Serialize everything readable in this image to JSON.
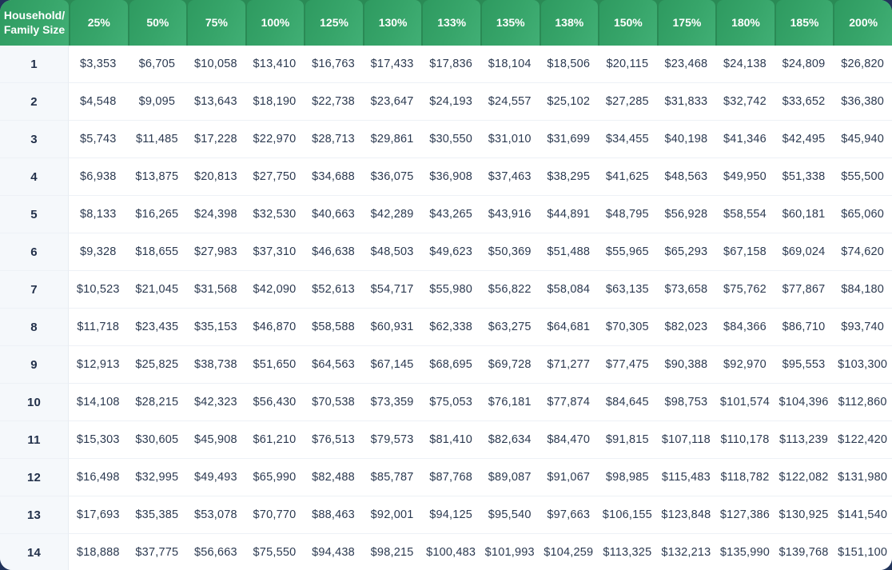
{
  "colors": {
    "header_green_dark": "#2e9a60",
    "header_green_light": "#41af75",
    "header_gap_green": "#2a8a55",
    "underlay_green": "#3fae74",
    "page_navy": "#22345b",
    "row_alt_tint": "#f5f8fb",
    "separator": "#edf1f6",
    "text_dark": "#2b3950"
  },
  "chart_data": {
    "type": "table",
    "corner_header": "Household/\nFamily Size",
    "column_headers": [
      "25%",
      "50%",
      "75%",
      "100%",
      "125%",
      "130%",
      "133%",
      "135%",
      "138%",
      "150%",
      "175%",
      "180%",
      "185%",
      "200%"
    ],
    "rows": [
      {
        "household_size": "1",
        "values": [
          "$3,353",
          "$6,705",
          "$10,058",
          "$13,410",
          "$16,763",
          "$17,433",
          "$17,836",
          "$18,104",
          "$18,506",
          "$20,115",
          "$23,468",
          "$24,138",
          "$24,809",
          "$26,820"
        ]
      },
      {
        "household_size": "2",
        "values": [
          "$4,548",
          "$9,095",
          "$13,643",
          "$18,190",
          "$22,738",
          "$23,647",
          "$24,193",
          "$24,557",
          "$25,102",
          "$27,285",
          "$31,833",
          "$32,742",
          "$33,652",
          "$36,380"
        ]
      },
      {
        "household_size": "3",
        "values": [
          "$5,743",
          "$11,485",
          "$17,228",
          "$22,970",
          "$28,713",
          "$29,861",
          "$30,550",
          "$31,010",
          "$31,699",
          "$34,455",
          "$40,198",
          "$41,346",
          "$42,495",
          "$45,940"
        ]
      },
      {
        "household_size": "4",
        "values": [
          "$6,938",
          "$13,875",
          "$20,813",
          "$27,750",
          "$34,688",
          "$36,075",
          "$36,908",
          "$37,463",
          "$38,295",
          "$41,625",
          "$48,563",
          "$49,950",
          "$51,338",
          "$55,500"
        ]
      },
      {
        "household_size": "5",
        "values": [
          "$8,133",
          "$16,265",
          "$24,398",
          "$32,530",
          "$40,663",
          "$42,289",
          "$43,265",
          "$43,916",
          "$44,891",
          "$48,795",
          "$56,928",
          "$58,554",
          "$60,181",
          "$65,060"
        ]
      },
      {
        "household_size": "6",
        "values": [
          "$9,328",
          "$18,655",
          "$27,983",
          "$37,310",
          "$46,638",
          "$48,503",
          "$49,623",
          "$50,369",
          "$51,488",
          "$55,965",
          "$65,293",
          "$67,158",
          "$69,024",
          "$74,620"
        ]
      },
      {
        "household_size": "7",
        "values": [
          "$10,523",
          "$21,045",
          "$31,568",
          "$42,090",
          "$52,613",
          "$54,717",
          "$55,980",
          "$56,822",
          "$58,084",
          "$63,135",
          "$73,658",
          "$75,762",
          "$77,867",
          "$84,180"
        ]
      },
      {
        "household_size": "8",
        "values": [
          "$11,718",
          "$23,435",
          "$35,153",
          "$46,870",
          "$58,588",
          "$60,931",
          "$62,338",
          "$63,275",
          "$64,681",
          "$70,305",
          "$82,023",
          "$84,366",
          "$86,710",
          "$93,740"
        ]
      },
      {
        "household_size": "9",
        "values": [
          "$12,913",
          "$25,825",
          "$38,738",
          "$51,650",
          "$64,563",
          "$67,145",
          "$68,695",
          "$69,728",
          "$71,277",
          "$77,475",
          "$90,388",
          "$92,970",
          "$95,553",
          "$103,300"
        ]
      },
      {
        "household_size": "10",
        "values": [
          "$14,108",
          "$28,215",
          "$42,323",
          "$56,430",
          "$70,538",
          "$73,359",
          "$75,053",
          "$76,181",
          "$77,874",
          "$84,645",
          "$98,753",
          "$101,574",
          "$104,396",
          "$112,860"
        ]
      },
      {
        "household_size": "11",
        "values": [
          "$15,303",
          "$30,605",
          "$45,908",
          "$61,210",
          "$76,513",
          "$79,573",
          "$81,410",
          "$82,634",
          "$84,470",
          "$91,815",
          "$107,118",
          "$110,178",
          "$113,239",
          "$122,420"
        ]
      },
      {
        "household_size": "12",
        "values": [
          "$16,498",
          "$32,995",
          "$49,493",
          "$65,990",
          "$82,488",
          "$85,787",
          "$87,768",
          "$89,087",
          "$91,067",
          "$98,985",
          "$115,483",
          "$118,782",
          "$122,082",
          "$131,980"
        ]
      },
      {
        "household_size": "13",
        "values": [
          "$17,693",
          "$35,385",
          "$53,078",
          "$70,770",
          "$88,463",
          "$92,001",
          "$94,125",
          "$95,540",
          "$97,663",
          "$106,155",
          "$123,848",
          "$127,386",
          "$130,925",
          "$141,540"
        ]
      },
      {
        "household_size": "14",
        "values": [
          "$18,888",
          "$37,775",
          "$56,663",
          "$75,550",
          "$94,438",
          "$98,215",
          "$100,483",
          "$101,993",
          "$104,259",
          "$113,325",
          "$132,213",
          "$135,990",
          "$139,768",
          "$151,100"
        ]
      }
    ]
  }
}
